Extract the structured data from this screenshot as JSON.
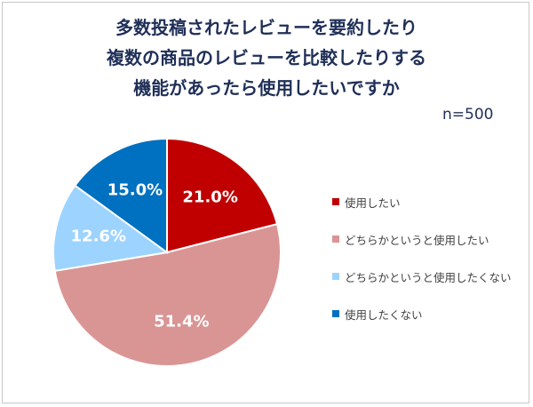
{
  "chart_data": {
    "type": "pie",
    "title_lines": [
      "多数投稿されたレビューを要約したり",
      "複数の商品のレビューを比較したりする",
      "機能があったら使用したいですか"
    ],
    "note": "n=500",
    "slices": [
      {
        "name": "使用したい",
        "value": 21.0,
        "label": "21.0%",
        "color": "#c00000"
      },
      {
        "name": "どちらかというと使用したい",
        "value": 51.4,
        "label": "51.4%",
        "color": "#d99594"
      },
      {
        "name": "どちらかというと使用したくない",
        "value": 12.6,
        "label": "12.6%",
        "color": "#9dd3ff"
      },
      {
        "name": "使用したくない",
        "value": 15.0,
        "label": "15.0%",
        "color": "#0070c0"
      }
    ],
    "start_angle": "12 o'clock",
    "direction": "clockwise",
    "legend_position": "right"
  }
}
